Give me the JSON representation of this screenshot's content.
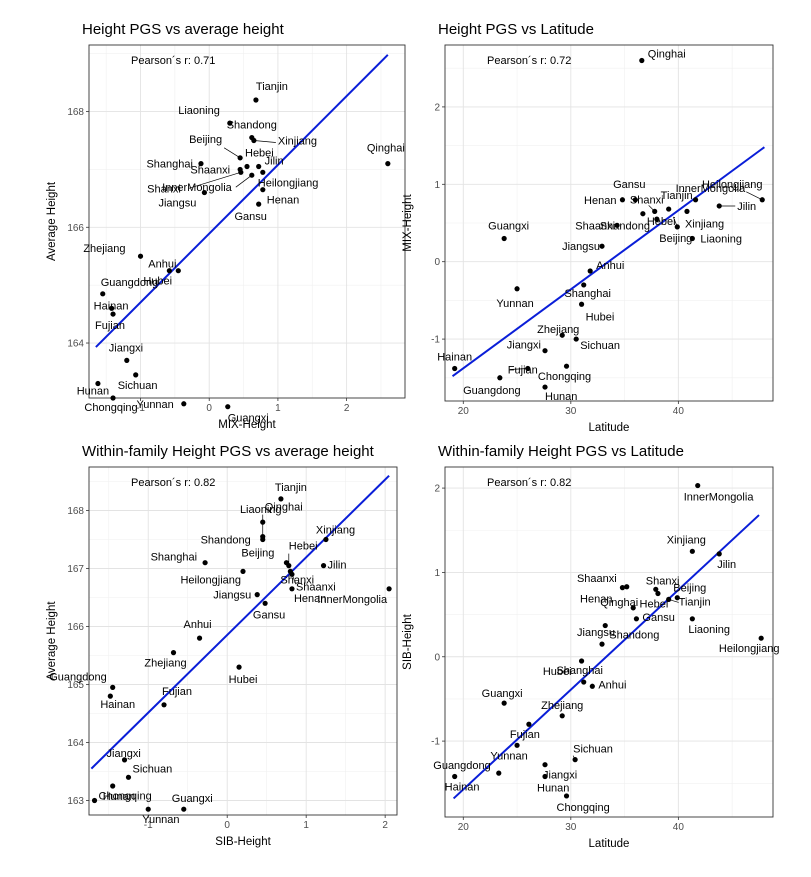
{
  "chart_data": [
    {
      "type": "scatter",
      "title": "Height PGS vs average height",
      "xlabel": "MIX-Height",
      "ylabel": "Average Height",
      "annotation": "Pearson´s r:  0.71",
      "xlim": [
        -1.75,
        2.85
      ],
      "ylim": [
        163.05,
        169.15
      ],
      "xticks": [
        -1,
        0,
        1,
        2
      ],
      "yticks": [
        164,
        166,
        168
      ],
      "fit": {
        "x": [
          -1.65,
          2.6
        ],
        "y": [
          163.93,
          168.98
        ]
      },
      "points": [
        {
          "name": "Tianjin",
          "x": 0.68,
          "y": 168.2
        },
        {
          "name": "Liaoning",
          "x": 0.3,
          "y": 167.8
        },
        {
          "name": "Shandong",
          "x": 0.62,
          "y": 167.55
        },
        {
          "name": "Xinjiang",
          "x": 0.65,
          "y": 167.5
        },
        {
          "name": "Qinghai",
          "x": 2.6,
          "y": 167.1
        },
        {
          "name": "Beijing",
          "x": 0.45,
          "y": 167.2
        },
        {
          "name": "Hebei",
          "x": 0.55,
          "y": 167.05
        },
        {
          "name": "Shanghai",
          "x": -0.12,
          "y": 167.1
        },
        {
          "name": "Shaanxi",
          "x": 0.45,
          "y": 167.0
        },
        {
          "name": "Jilin",
          "x": 0.72,
          "y": 167.05
        },
        {
          "name": "Shanxi",
          "x": 0.46,
          "y": 166.95
        },
        {
          "name": "InnerMongolia",
          "x": 0.62,
          "y": 166.9
        },
        {
          "name": "Heilongjiang",
          "x": 0.78,
          "y": 166.95
        },
        {
          "name": "Jiangsu",
          "x": -0.07,
          "y": 166.6
        },
        {
          "name": "Henan",
          "x": 0.78,
          "y": 166.65
        },
        {
          "name": "Gansu",
          "x": 0.72,
          "y": 166.4
        },
        {
          "name": "Zhejiang",
          "x": -1.0,
          "y": 165.5
        },
        {
          "name": "Anhui",
          "x": -0.45,
          "y": 165.25
        },
        {
          "name": "Hubei",
          "x": -0.58,
          "y": 165.25
        },
        {
          "name": "Guangdong",
          "x": -1.55,
          "y": 164.85
        },
        {
          "name": "Hainan",
          "x": -1.42,
          "y": 164.6
        },
        {
          "name": "Fujian",
          "x": -1.4,
          "y": 164.5
        },
        {
          "name": "Jiangxi",
          "x": -1.2,
          "y": 163.7
        },
        {
          "name": "Hunan",
          "x": -1.62,
          "y": 163.3
        },
        {
          "name": "Sichuan",
          "x": -1.07,
          "y": 163.45
        },
        {
          "name": "Chongqing",
          "x": -1.4,
          "y": 163.05
        },
        {
          "name": "Yunnan",
          "x": -0.37,
          "y": 162.95
        },
        {
          "name": "Guangxi",
          "x": 0.27,
          "y": 162.9
        }
      ]
    },
    {
      "type": "scatter",
      "title": "Height PGS vs Latitude",
      "xlabel": "Latitude",
      "ylabel": "MIX-Height",
      "annotation": "Pearson´s r:  0.72",
      "xlim": [
        18.3,
        48.8
      ],
      "ylim": [
        -1.8,
        2.8
      ],
      "xticks": [
        20,
        30,
        40
      ],
      "yticks": [
        -1,
        0,
        1,
        2
      ],
      "fit": {
        "x": [
          19,
          48
        ],
        "y": [
          -1.48,
          1.48
        ]
      },
      "points": [
        {
          "name": "Qinghai",
          "x": 36.6,
          "y": 2.6
        },
        {
          "name": "Gansu",
          "x": 36.0,
          "y": 0.8
        },
        {
          "name": "Henan",
          "x": 34.8,
          "y": 0.8
        },
        {
          "name": "Tianjin",
          "x": 39.1,
          "y": 0.68
        },
        {
          "name": "Shanxi",
          "x": 37.8,
          "y": 0.65
        },
        {
          "name": "InnerMongolia",
          "x": 41.6,
          "y": 0.8
        },
        {
          "name": "Heilongjiang",
          "x": 47.8,
          "y": 0.8
        },
        {
          "name": "Jilin",
          "x": 43.8,
          "y": 0.72
        },
        {
          "name": "Shandong",
          "x": 36.7,
          "y": 0.62
        },
        {
          "name": "Xinjiang",
          "x": 40.8,
          "y": 0.65
        },
        {
          "name": "Shaanxi",
          "x": 34.3,
          "y": 0.47
        },
        {
          "name": "Hebei",
          "x": 38.0,
          "y": 0.55
        },
        {
          "name": "Liaoning",
          "x": 41.3,
          "y": 0.3
        },
        {
          "name": "Beijing",
          "x": 39.9,
          "y": 0.45
        },
        {
          "name": "Guangxi",
          "x": 23.8,
          "y": 0.3
        },
        {
          "name": "Jiangsu",
          "x": 32.9,
          "y": 0.2
        },
        {
          "name": "Anhui",
          "x": 31.8,
          "y": -0.12
        },
        {
          "name": "Yunnan",
          "x": 25.0,
          "y": -0.35
        },
        {
          "name": "Shanghai",
          "x": 31.2,
          "y": -0.3
        },
        {
          "name": "Hubei",
          "x": 31.0,
          "y": -0.55
        },
        {
          "name": "Zhejiang",
          "x": 29.2,
          "y": -0.95
        },
        {
          "name": "Jiangxi",
          "x": 27.6,
          "y": -1.15
        },
        {
          "name": "Sichuan",
          "x": 30.5,
          "y": -1.0
        },
        {
          "name": "Hainan",
          "x": 19.2,
          "y": -1.38
        },
        {
          "name": "Fujian",
          "x": 26.0,
          "y": -1.38
        },
        {
          "name": "Chongqing",
          "x": 29.6,
          "y": -1.35
        },
        {
          "name": "Guangdong",
          "x": 23.4,
          "y": -1.5
        },
        {
          "name": "Hunan",
          "x": 27.6,
          "y": -1.62
        }
      ]
    },
    {
      "type": "scatter",
      "title": "Within-family Height PGS vs average height",
      "xlabel": "SIB-Height",
      "ylabel": "Average Height",
      "annotation": "Pearson´s r:  0.82",
      "xlim": [
        -1.75,
        2.15
      ],
      "ylim": [
        162.75,
        168.75
      ],
      "xticks": [
        -1,
        0,
        1,
        2
      ],
      "yticks": [
        163,
        164,
        165,
        166,
        167,
        168
      ],
      "fit": {
        "x": [
          -1.72,
          2.05
        ],
        "y": [
          163.55,
          168.6
        ]
      },
      "points": [
        {
          "name": "Tianjin",
          "x": 0.68,
          "y": 168.2
        },
        {
          "name": "Liaoning",
          "x": 0.45,
          "y": 167.8
        },
        {
          "name": "Xinjiang",
          "x": 1.25,
          "y": 167.5
        },
        {
          "name": "Qinghai",
          "x": 0.45,
          "y": 167.55
        },
        {
          "name": "Shandong",
          "x": 0.45,
          "y": 167.5
        },
        {
          "name": "Shanghai",
          "x": -0.28,
          "y": 167.1
        },
        {
          "name": "Beijing",
          "x": 0.75,
          "y": 167.1
        },
        {
          "name": "Hebei",
          "x": 0.78,
          "y": 167.05
        },
        {
          "name": "Jilin",
          "x": 1.22,
          "y": 167.05
        },
        {
          "name": "Heilongjiang",
          "x": 0.2,
          "y": 166.95
        },
        {
          "name": "Shanxi",
          "x": 0.8,
          "y": 166.95
        },
        {
          "name": "Shaanxi",
          "x": 0.82,
          "y": 166.9
        },
        {
          "name": "InnerMongolia",
          "x": 2.05,
          "y": 166.65
        },
        {
          "name": "Jiangsu",
          "x": 0.38,
          "y": 166.55
        },
        {
          "name": "Henan",
          "x": 0.82,
          "y": 166.65
        },
        {
          "name": "Gansu",
          "x": 0.48,
          "y": 166.4
        },
        {
          "name": "Anhui",
          "x": -0.35,
          "y": 165.8
        },
        {
          "name": "Zhejiang",
          "x": -0.68,
          "y": 165.55
        },
        {
          "name": "Hubei",
          "x": 0.15,
          "y": 165.3
        },
        {
          "name": "Guangdong",
          "x": -1.45,
          "y": 164.95
        },
        {
          "name": "Hainan",
          "x": -1.48,
          "y": 164.8
        },
        {
          "name": "Fujian",
          "x": -0.8,
          "y": 164.65
        },
        {
          "name": "Jiangxi",
          "x": -1.3,
          "y": 163.7
        },
        {
          "name": "Sichuan",
          "x": -1.25,
          "y": 163.4
        },
        {
          "name": "Hunan",
          "x": -1.45,
          "y": 163.25
        },
        {
          "name": "Chongqing",
          "x": -1.68,
          "y": 163.0
        },
        {
          "name": "Yunnan",
          "x": -1.0,
          "y": 162.85
        },
        {
          "name": "Guangxi",
          "x": -0.55,
          "y": 162.85
        }
      ]
    },
    {
      "type": "scatter",
      "title": "Within-family Height PGS vs Latitude",
      "xlabel": "Latitude",
      "ylabel": "SIB-Height",
      "annotation": "Pearson´s r:  0.82",
      "xlim": [
        18.3,
        48.8
      ],
      "ylim": [
        -1.9,
        2.25
      ],
      "xticks": [
        20,
        30,
        40
      ],
      "yticks": [
        -1,
        0,
        1,
        2
      ],
      "fit": {
        "x": [
          19.1,
          47.5
        ],
        "y": [
          -1.68,
          1.68
        ]
      },
      "points": [
        {
          "name": "InnerMongolia",
          "x": 41.8,
          "y": 2.03
        },
        {
          "name": "Xinjiang",
          "x": 41.3,
          "y": 1.25
        },
        {
          "name": "Jilin",
          "x": 43.8,
          "y": 1.22
        },
        {
          "name": "Shaanxi",
          "x": 35.2,
          "y": 0.83
        },
        {
          "name": "Shanxi",
          "x": 37.9,
          "y": 0.8
        },
        {
          "name": "Henan",
          "x": 34.8,
          "y": 0.82
        },
        {
          "name": "Hebei",
          "x": 38.1,
          "y": 0.75
        },
        {
          "name": "Beijing",
          "x": 39.9,
          "y": 0.7
        },
        {
          "name": "Tianjin",
          "x": 39.1,
          "y": 0.68
        },
        {
          "name": "Qinghai",
          "x": 35.8,
          "y": 0.58
        },
        {
          "name": "Gansu",
          "x": 36.1,
          "y": 0.45
        },
        {
          "name": "Shandong",
          "x": 33.2,
          "y": 0.37
        },
        {
          "name": "Liaoning",
          "x": 41.3,
          "y": 0.45
        },
        {
          "name": "Heilongjiang",
          "x": 47.7,
          "y": 0.22
        },
        {
          "name": "Jiangsu",
          "x": 32.9,
          "y": 0.15
        },
        {
          "name": "Hubei",
          "x": 31.0,
          "y": -0.05
        },
        {
          "name": "Shanghai",
          "x": 31.2,
          "y": -0.3
        },
        {
          "name": "Anhui",
          "x": 32.0,
          "y": -0.35
        },
        {
          "name": "Guangxi",
          "x": 23.8,
          "y": -0.55
        },
        {
          "name": "Zhejiang",
          "x": 29.2,
          "y": -0.7
        },
        {
          "name": "Fujian",
          "x": 26.1,
          "y": -0.8
        },
        {
          "name": "Yunnan",
          "x": 25.0,
          "y": -1.05
        },
        {
          "name": "Jiangxi",
          "x": 27.6,
          "y": -1.28
        },
        {
          "name": "Sichuan",
          "x": 30.4,
          "y": -1.22
        },
        {
          "name": "Guangdong",
          "x": 23.3,
          "y": -1.38
        },
        {
          "name": "Hainan",
          "x": 19.2,
          "y": -1.42
        },
        {
          "name": "Hunan",
          "x": 27.6,
          "y": -1.42
        },
        {
          "name": "Chongqing",
          "x": 29.6,
          "y": -1.65
        }
      ]
    }
  ]
}
